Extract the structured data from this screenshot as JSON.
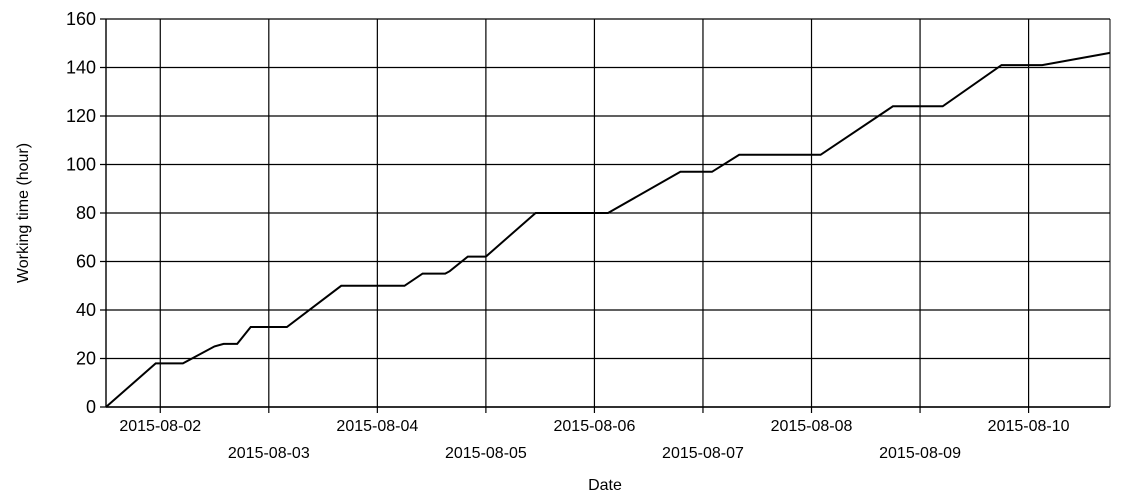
{
  "chart_data": {
    "type": "line",
    "title": "",
    "xlabel": "Date",
    "ylabel": "Working time (hour)",
    "ylim": [
      0,
      160
    ],
    "xlim": [
      "2015-08-01T12:00",
      "2015-08-10T18:00"
    ],
    "y_ticks": [
      0,
      20,
      40,
      60,
      80,
      100,
      120,
      140,
      160
    ],
    "x_ticks": [
      "2015-08-02",
      "2015-08-03",
      "2015-08-04",
      "2015-08-05",
      "2015-08-06",
      "2015-08-07",
      "2015-08-08",
      "2015-08-09",
      "2015-08-10"
    ],
    "grid": true,
    "legend": "none",
    "line_color": "#000000",
    "series": [
      {
        "x": [
          "2015-08-01T12:00",
          "2015-08-01T23:00",
          "2015-08-02T05:00",
          "2015-08-02T12:00",
          "2015-08-02T14:00",
          "2015-08-02T17:00",
          "2015-08-02T20:00",
          "2015-08-03T02:00",
          "2015-08-03T04:00",
          "2015-08-03T16:00",
          "2015-08-04T06:00",
          "2015-08-04T10:00",
          "2015-08-04T15:00",
          "2015-08-04T16:00",
          "2015-08-04T20:00",
          "2015-08-05T00:00",
          "2015-08-05T11:00",
          "2015-08-05T23:00",
          "2015-08-06T03:00",
          "2015-08-06T19:00",
          "2015-08-07T02:00",
          "2015-08-07T08:00",
          "2015-08-07T12:00",
          "2015-08-08T02:00",
          "2015-08-08T18:00",
          "2015-08-09T05:00",
          "2015-08-09T18:00",
          "2015-08-10T03:00",
          "2015-08-10T18:00"
        ],
        "values": [
          0,
          18,
          18,
          25,
          26,
          26,
          33,
          33,
          33,
          50,
          50,
          55,
          55,
          56,
          62,
          62,
          80,
          80,
          80,
          97,
          97,
          104,
          104,
          104,
          124,
          124,
          141,
          141,
          146
        ]
      }
    ]
  }
}
